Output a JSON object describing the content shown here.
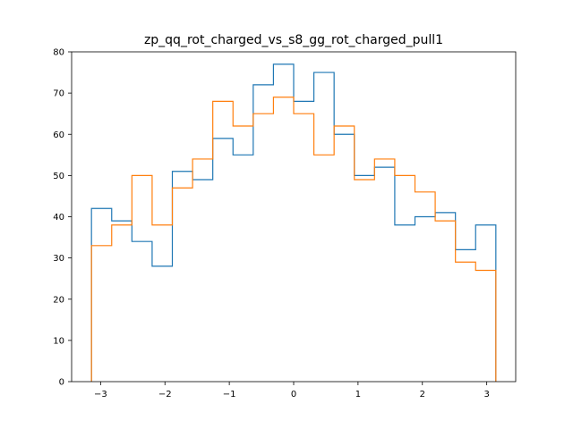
{
  "chart_data": {
    "type": "histogram",
    "title": "zp_qq_rot_charged_vs_s8_gg_rot_charged_pull1",
    "xlabel": "",
    "ylabel": "",
    "xlim": [
      -3.45,
      3.45
    ],
    "ylim": [
      0,
      80
    ],
    "x_ticks": [
      -3,
      -2,
      -1,
      0,
      1,
      2,
      3
    ],
    "x_tick_labels": [
      "−3",
      "−2",
      "−1",
      "0",
      "1",
      "2",
      "3"
    ],
    "y_ticks": [
      0,
      10,
      20,
      30,
      40,
      50,
      60,
      70,
      80
    ],
    "y_tick_labels": [
      "0",
      "10",
      "20",
      "30",
      "40",
      "50",
      "60",
      "70",
      "80"
    ],
    "grid": false,
    "legend": "none",
    "bin_edges": [
      -3.1416,
      -2.8274,
      -2.5133,
      -2.1991,
      -1.885,
      -1.5708,
      -1.2566,
      -0.9425,
      -0.6283,
      -0.3142,
      0.0,
      0.3142,
      0.6283,
      0.9425,
      1.2566,
      1.5708,
      1.885,
      2.1991,
      2.5133,
      2.8274,
      3.1416
    ],
    "series": [
      {
        "color": "#1f77b4",
        "values": [
          42,
          39,
          34,
          28,
          51,
          49,
          59,
          55,
          72,
          77,
          68,
          75,
          60,
          50,
          52,
          38,
          40,
          41,
          32,
          38
        ]
      },
      {
        "color": "#ff7f0e",
        "values": [
          33,
          38,
          50,
          38,
          47,
          54,
          68,
          62,
          65,
          69,
          65,
          55,
          62,
          49,
          54,
          50,
          46,
          39,
          29,
          27
        ]
      }
    ]
  }
}
